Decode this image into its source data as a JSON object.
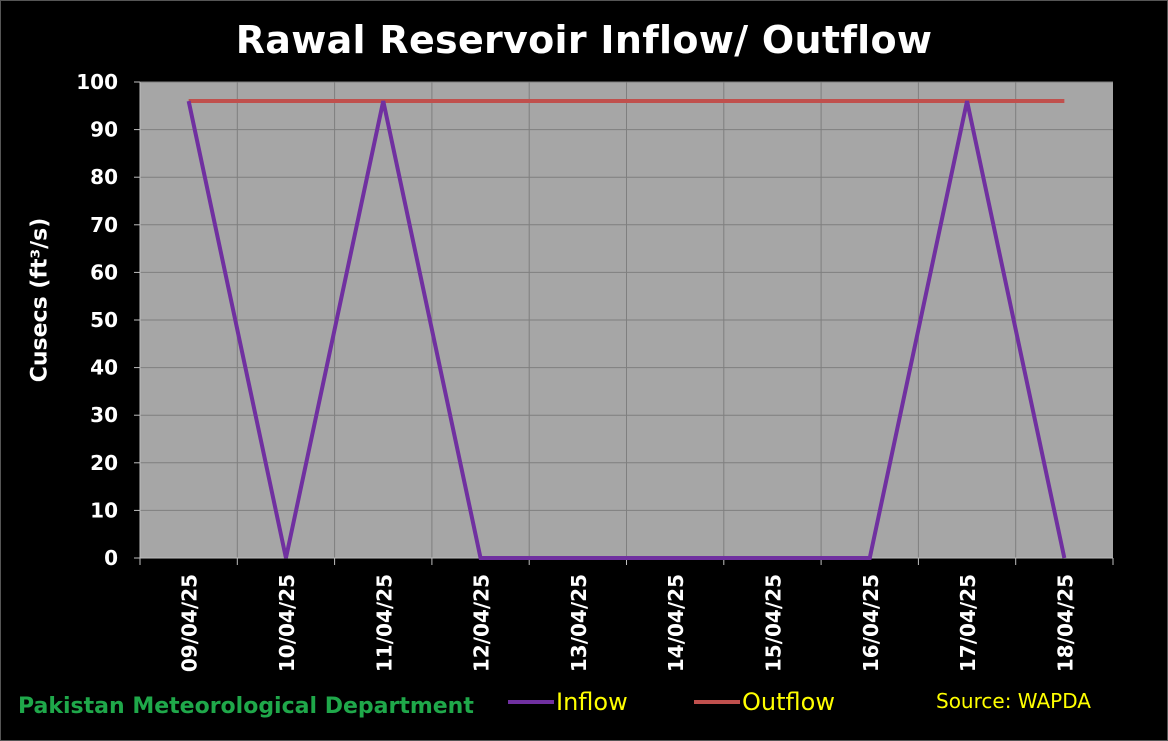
{
  "chart_data": {
    "type": "line",
    "title": "Rawal Reservoir Inflow/ Outflow",
    "ylabel": "Cusecs  (ft³/s)",
    "xlabel": "",
    "ylim": [
      0,
      100
    ],
    "yticks": [
      0,
      10,
      20,
      30,
      40,
      50,
      60,
      70,
      80,
      90,
      100
    ],
    "grid": true,
    "legend_position": "bottom",
    "x": [
      "09/04/25",
      "10/04/25",
      "11/04/25",
      "12/04/25",
      "13/04/25",
      "14/04/25",
      "15/04/25",
      "16/04/25",
      "17/04/25",
      "18/04/25"
    ],
    "series": [
      {
        "name": "Inflow",
        "color": "#7030a0",
        "values": [
          96,
          0,
          96,
          0,
          0,
          0,
          0,
          0,
          96,
          0
        ]
      },
      {
        "name": "Outflow",
        "color": "#c0504d",
        "values": [
          96,
          96,
          96,
          96,
          96,
          96,
          96,
          96,
          96,
          96
        ]
      }
    ],
    "plot_background": "#a6a6a6"
  },
  "footer": {
    "organization": "Pakistan Meteorological Department",
    "source": "Source: WAPDA"
  }
}
